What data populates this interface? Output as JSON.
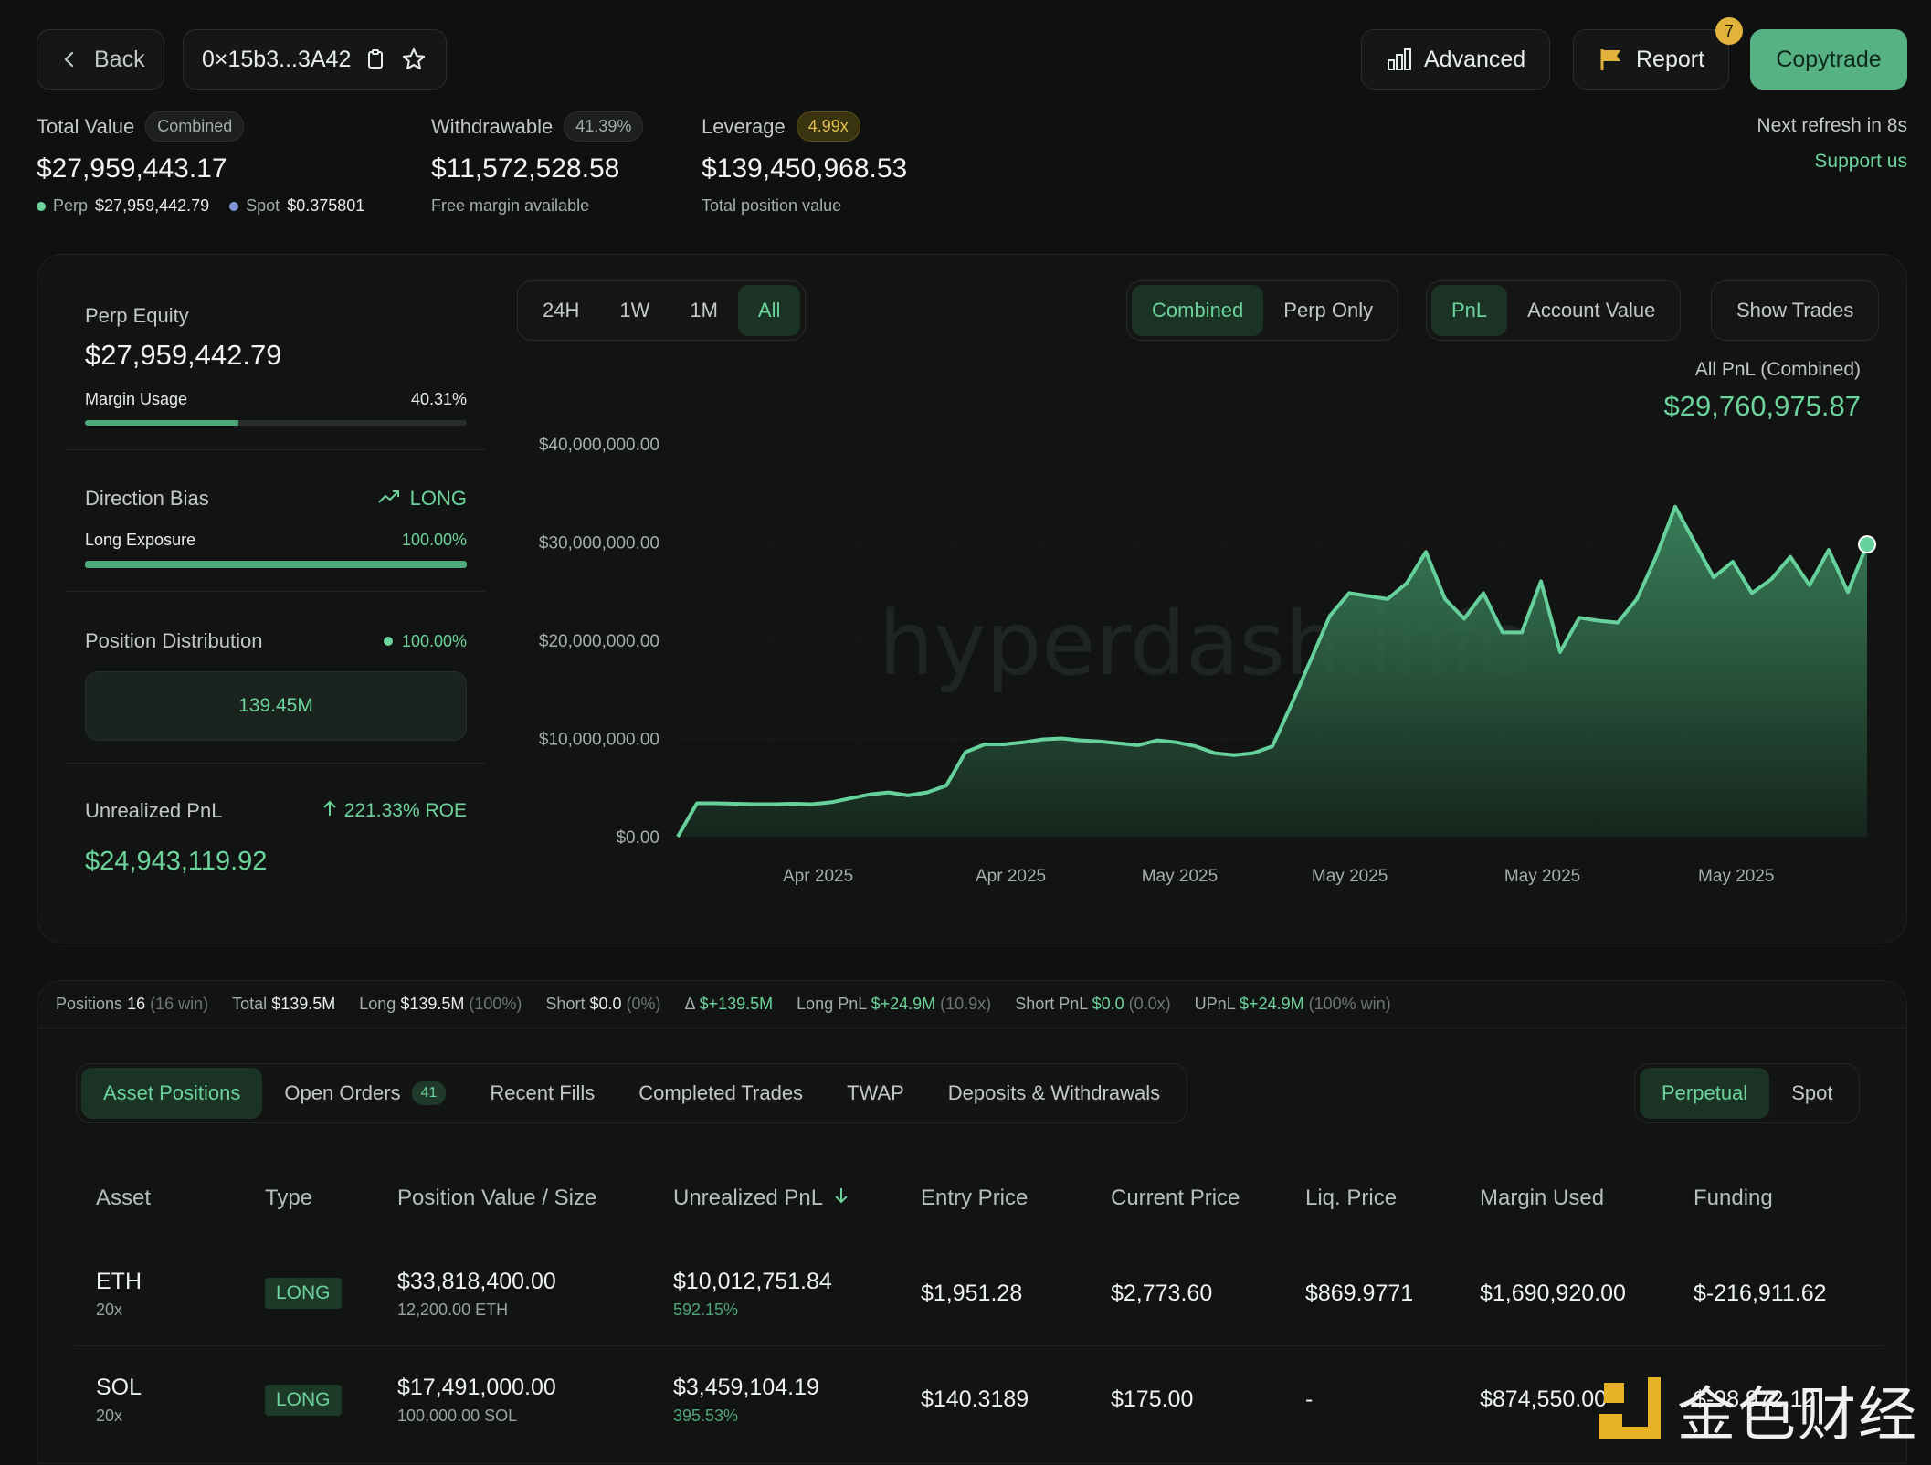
{
  "topbar": {
    "back_label": "Back",
    "address": "0×15b3...3A42",
    "advanced_label": "Advanced",
    "report_label": "Report",
    "report_badge": "7",
    "copytrade_label": "Copytrade"
  },
  "summary": {
    "total_value_label": "Total Value",
    "total_value_pill": "Combined",
    "total_value": "$27,959,443.17",
    "perp_label": "Perp",
    "perp_value": "$27,959,442.79",
    "spot_label": "Spot",
    "spot_value": "$0.375801",
    "withdrawable_label": "Withdrawable",
    "withdrawable_pill": "41.39%",
    "withdrawable_value": "$11,572,528.58",
    "withdrawable_sub": "Free margin available",
    "leverage_label": "Leverage",
    "leverage_pill": "4.99x",
    "leverage_value": "$139,450,968.53",
    "leverage_sub": "Total position value",
    "refresh_text": "Next refresh in 8s",
    "support_text": "Support us"
  },
  "side": {
    "perp_equity_label": "Perp Equity",
    "perp_equity_value": "$27,959,442.79",
    "margin_usage_label": "Margin Usage",
    "margin_usage_value": "40.31%",
    "margin_usage_fraction": 0.4031,
    "direction_bias_label": "Direction Bias",
    "direction_bias_value": "LONG",
    "long_exposure_label": "Long Exposure",
    "long_exposure_value": "100.00%",
    "long_exposure_fraction": 1.0,
    "position_distribution_label": "Position Distribution",
    "position_distribution_value": "100.00%",
    "distribution_box": "139.45M",
    "upnl_label": "Unrealized PnL",
    "upnl_roe": "221.33% ROE",
    "upnl_value": "$24,943,119.92"
  },
  "range_tabs": [
    "24H",
    "1W",
    "1M",
    "All"
  ],
  "mode_tabs": [
    "Combined",
    "Perp Only"
  ],
  "metric_tabs": [
    "PnL",
    "Account Value"
  ],
  "show_trades_label": "Show Trades",
  "chart_header": {
    "label": "All PnL (Combined)",
    "value": "$29,760,975.87"
  },
  "watermark": "hyperdash.info",
  "chart_data": {
    "type": "area",
    "title": "All PnL (Combined)",
    "ylim": [
      0,
      40000000
    ],
    "y_ticks": [
      "$40,000,000.00",
      "$30,000,000.00",
      "$20,000,000.00",
      "$10,000,000.00",
      "$0.00"
    ],
    "x_ticks": [
      "Apr 2025",
      "Apr 2025",
      "May 2025",
      "May 2025",
      "May 2025",
      "May 2025"
    ],
    "series": [
      {
        "values": [
          0,
          3400000,
          3400000,
          3350000,
          3300000,
          3300000,
          3350000,
          3300000,
          3500000,
          3900000,
          4300000,
          4500000,
          4200000,
          4500000,
          5200000,
          8600000,
          9400000,
          9400000,
          9600000,
          9900000,
          10000000,
          9800000,
          9700000,
          9500000,
          9300000,
          9800000,
          9600000,
          9200000,
          8500000,
          8300000,
          8500000,
          9200000,
          13500000,
          18000000,
          22500000,
          24800000,
          24500000,
          24200000,
          25800000,
          29000000,
          24200000,
          22200000,
          24800000,
          20800000,
          20800000,
          26000000,
          18800000,
          22300000,
          22000000,
          21800000,
          24200000,
          28500000,
          33600000,
          30000000,
          26400000,
          28000000,
          24800000,
          26200000,
          28500000,
          25600000,
          29200000,
          24900000,
          29760975
        ]
      }
    ],
    "colors": {
      "line": "#66d19b",
      "fill_top": "#3f8f64",
      "fill_bottom": "#16271d"
    }
  },
  "positions_summary": {
    "positions_label": "Positions",
    "positions_value": "16",
    "positions_note": "(16 win)",
    "total_label": "Total",
    "total_value": "$139.5M",
    "long_label": "Long",
    "long_value": "$139.5M",
    "long_note": "(100%)",
    "short_label": "Short",
    "short_value": "$0.0",
    "short_note": "(0%)",
    "delta_label": "Δ",
    "delta_value": "$+139.5M",
    "long_pnl_label": "Long PnL",
    "long_pnl_value": "$+24.9M",
    "long_pnl_note": "(10.9x)",
    "short_pnl_label": "Short PnL",
    "short_pnl_value": "$0.0",
    "short_pnl_note": "(0.0x)",
    "upnl_label": "UPnL",
    "upnl_value": "$+24.9M",
    "upnl_note": "(100% win)"
  },
  "position_tabs": {
    "asset_positions": "Asset Positions",
    "open_orders": "Open Orders",
    "open_orders_count": "41",
    "recent_fills": "Recent Fills",
    "completed_trades": "Completed Trades",
    "twap": "TWAP",
    "deposits": "Deposits & Withdrawals",
    "perpetual": "Perpetual",
    "spot": "Spot"
  },
  "table": {
    "headers": [
      "Asset",
      "Type",
      "Position Value / Size",
      "Unrealized PnL",
      "Entry Price",
      "Current Price",
      "Liq. Price",
      "Margin Used",
      "Funding"
    ],
    "rows": [
      {
        "asset": "ETH",
        "lev": "20x",
        "type": "LONG",
        "value": "$33,818,400.00",
        "size": "12,200.00 ETH",
        "upnl": "$10,012,751.84",
        "upnl_pct": "592.15%",
        "entry": "$1,951.28",
        "current": "$2,773.60",
        "liq": "$869.9771",
        "margin": "$1,690,920.00",
        "funding": "$-216,911.62"
      },
      {
        "asset": "SOL",
        "lev": "20x",
        "type": "LONG",
        "value": "$17,491,000.00",
        "size": "100,000.00 SOL",
        "upnl": "$3,459,104.19",
        "upnl_pct": "395.53%",
        "entry": "$140.3189",
        "current": "$175.00",
        "liq": "-",
        "margin": "$874,550.00",
        "funding": "$-98,972.12"
      }
    ]
  },
  "corner_logo_text": "金色财经"
}
